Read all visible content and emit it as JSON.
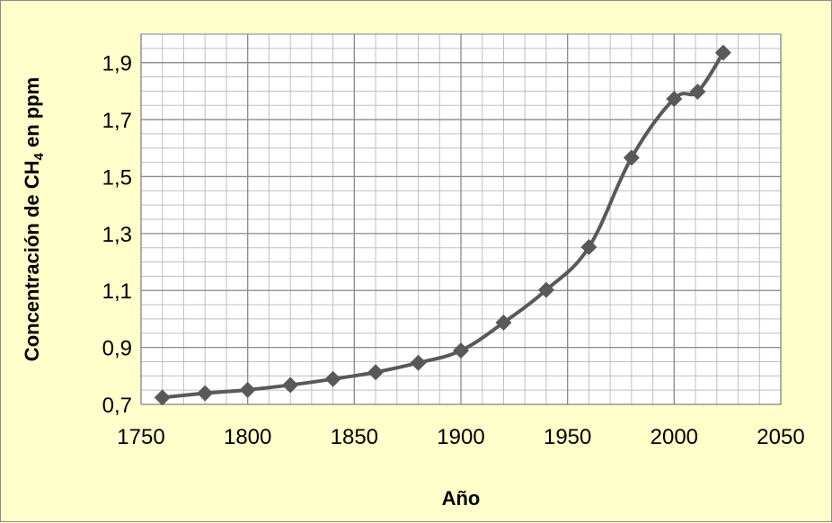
{
  "chart_data": {
    "type": "line",
    "xlabel": "Año",
    "ylabel": {
      "prefix": "Concentración de CH",
      "subscript": "4",
      "suffix": " en ppm"
    },
    "xlim": [
      1750,
      2050
    ],
    "ylim": [
      0.7,
      2.0
    ],
    "x_ticks": [
      1750,
      1800,
      1850,
      1900,
      1950,
      2000,
      2050
    ],
    "x_tick_labels": [
      "1750",
      "1800",
      "1850",
      "1900",
      "1950",
      "2000",
      "2050"
    ],
    "y_ticks": [
      0.7,
      0.9,
      1.1,
      1.3,
      1.5,
      1.7,
      1.9
    ],
    "y_tick_labels": [
      "0,7",
      "0,9",
      "1,1",
      "1,3",
      "1,5",
      "1,7",
      "1,9"
    ],
    "x_minor_step": 10,
    "y_minor_step": 0.05,
    "grid": true,
    "marker": "diamond",
    "colors": {
      "background": "#ffffcc",
      "plot_background": "#ffffff",
      "series": "#595959",
      "grid": "#bfbfbf"
    },
    "series": [
      {
        "x": [
          1760,
          1780,
          1800,
          1820,
          1840,
          1860,
          1880,
          1900,
          1920,
          1940,
          1960,
          1980,
          2000,
          2011,
          2023
        ],
        "y": [
          0.724,
          0.739,
          0.751,
          0.768,
          0.789,
          0.813,
          0.846,
          0.889,
          0.987,
          1.102,
          1.252,
          1.566,
          1.773,
          1.798,
          1.935
        ]
      }
    ]
  }
}
